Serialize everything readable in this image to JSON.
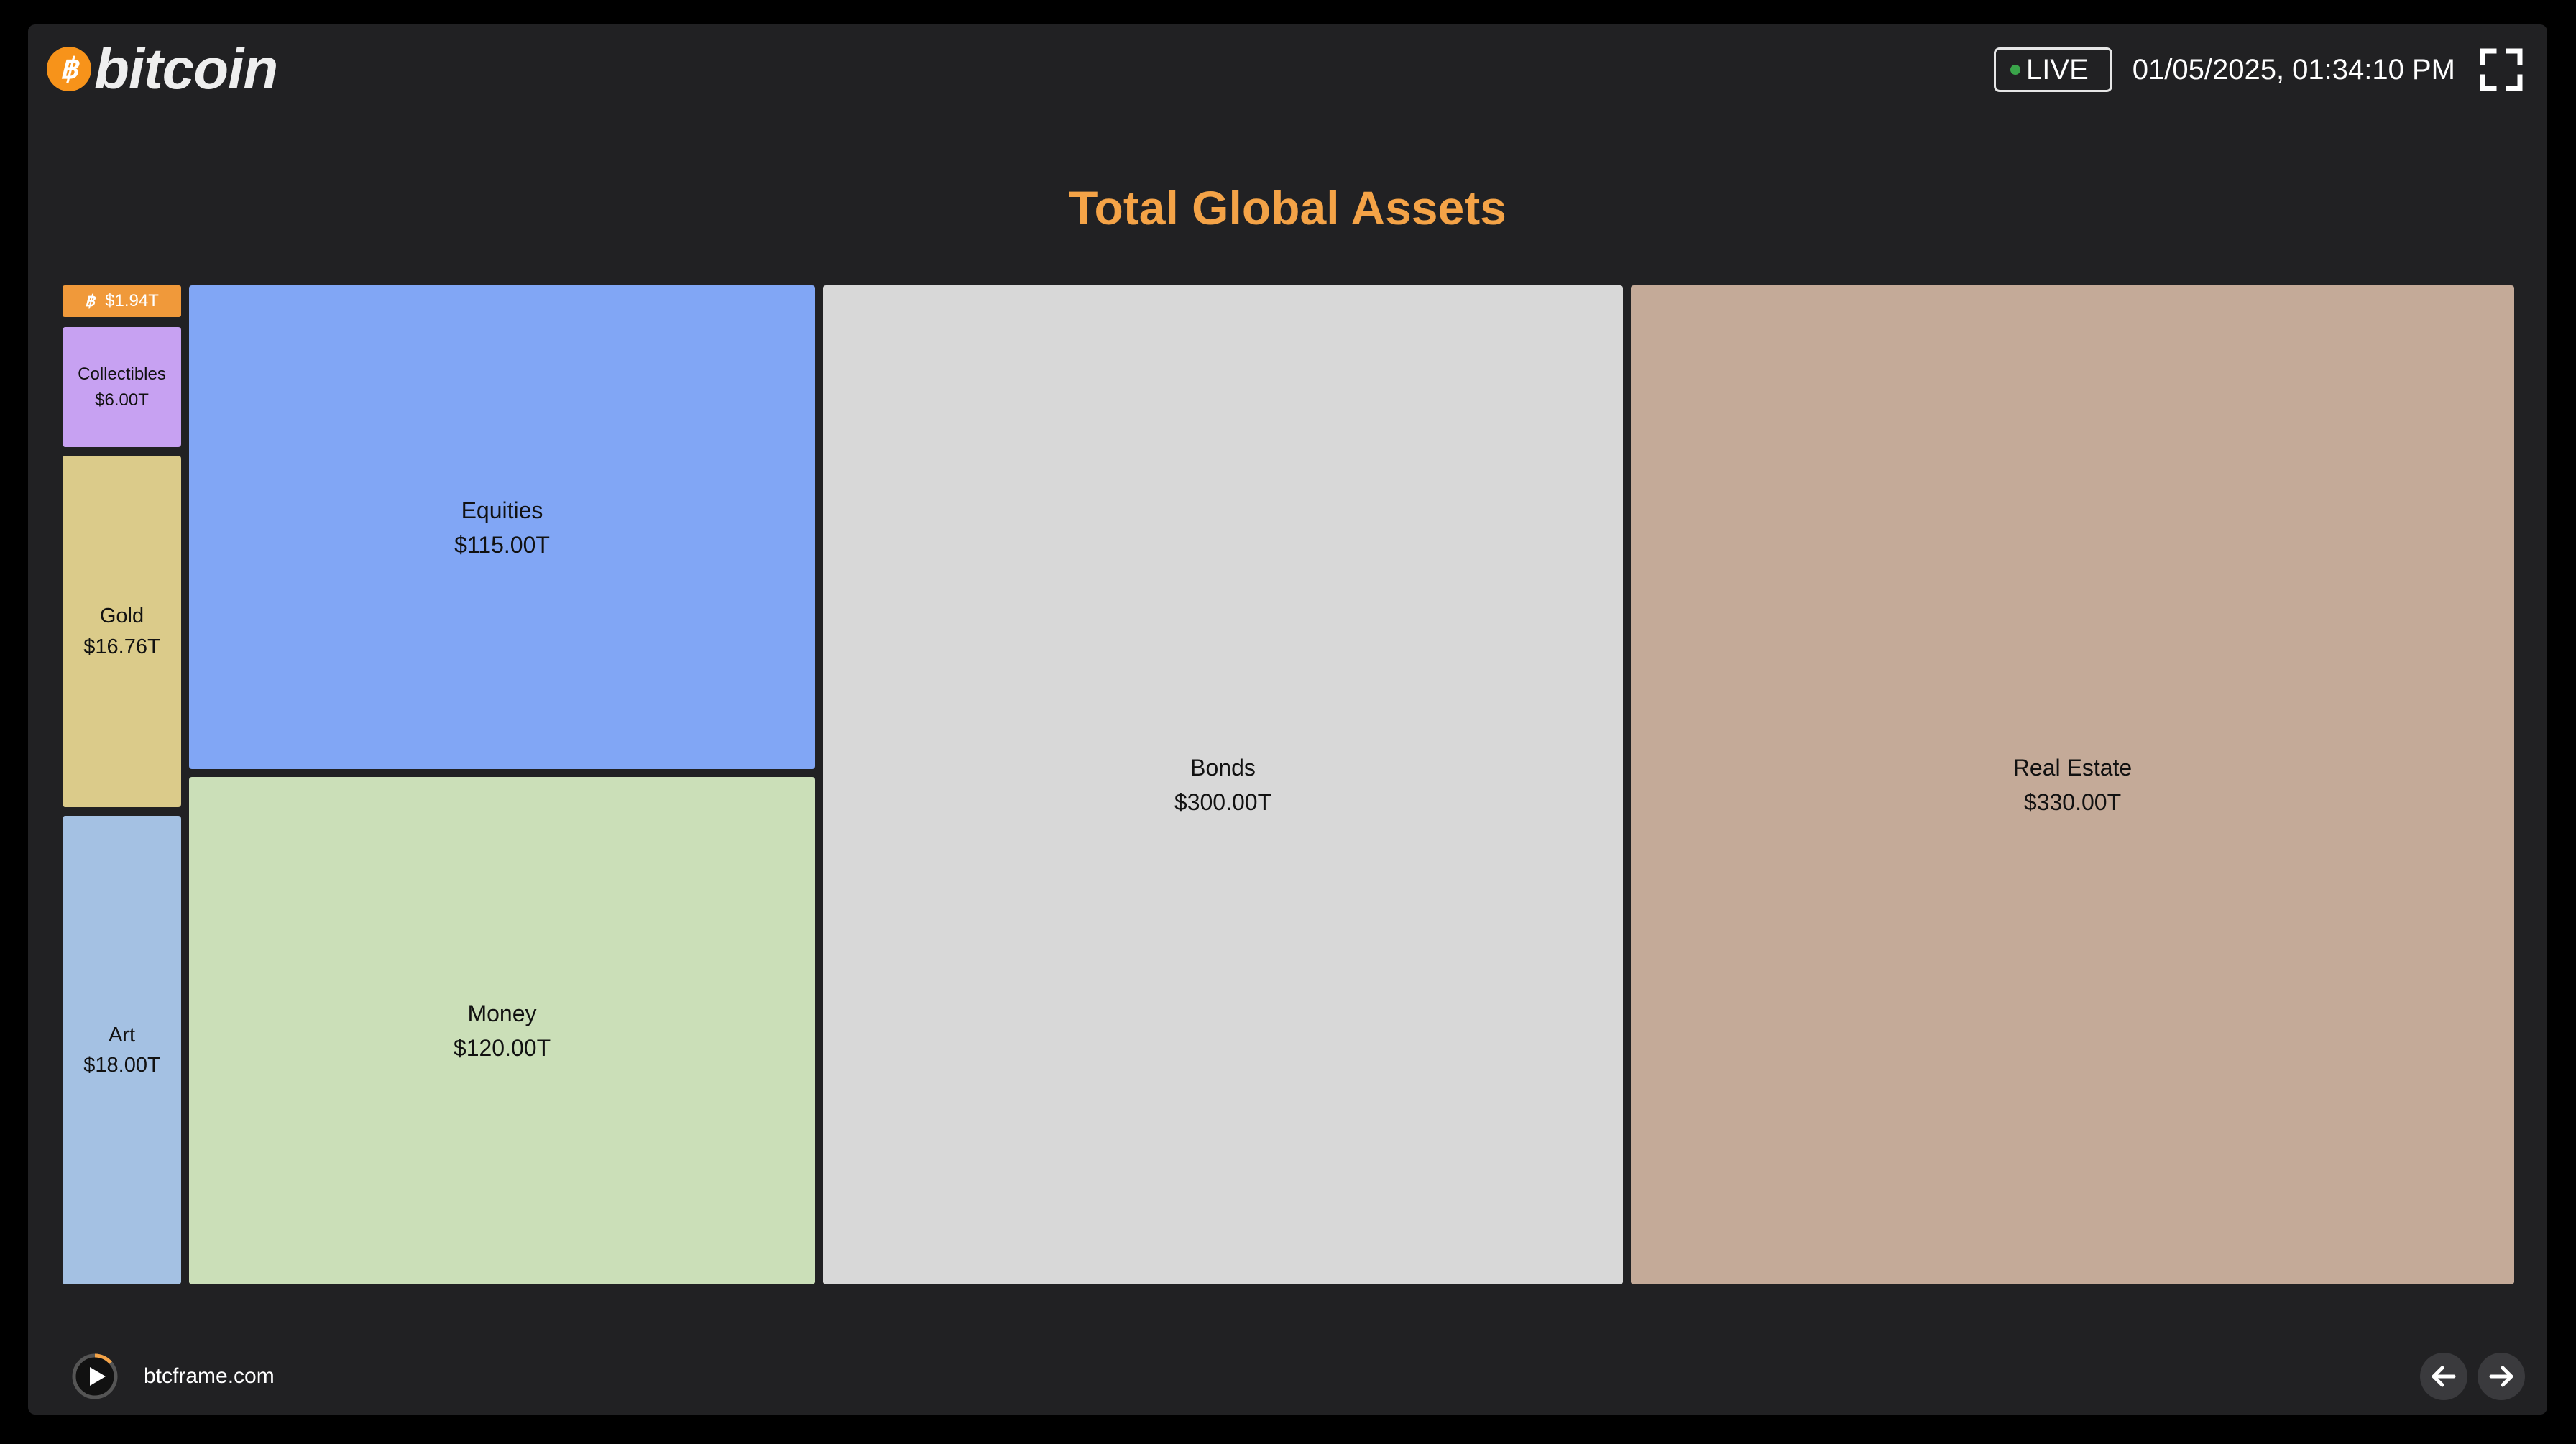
{
  "header": {
    "logo_text": "bitcoin",
    "live_label": "LIVE",
    "timestamp": "01/05/2025, 01:34:10 PM"
  },
  "colors": {
    "background": "#212123",
    "title": "#f4a347",
    "bitcoin": "#f0993a",
    "collectibles": "#c7a1f2",
    "gold": "#dbcb8a",
    "art": "#a4c1e3",
    "equities": "#81a6f5",
    "money": "#cbdfb8",
    "bonds": "#d8d8d8",
    "real_estate": "#c4aa98"
  },
  "chart_data": {
    "type": "treemap",
    "title": "Total Global Assets",
    "unit": "USD trillions",
    "items": [
      {
        "name": "",
        "label": "$1.94T",
        "value": 1.94,
        "icon": "bitcoin-icon"
      },
      {
        "name": "Collectibles",
        "label": "$6.00T",
        "value": 6.0
      },
      {
        "name": "Gold",
        "label": "$16.76T",
        "value": 16.76
      },
      {
        "name": "Art",
        "label": "$18.00T",
        "value": 18.0
      },
      {
        "name": "Equities",
        "label": "$115.00T",
        "value": 115.0
      },
      {
        "name": "Money",
        "label": "$120.00T",
        "value": 120.0
      },
      {
        "name": "Bonds",
        "label": "$300.00T",
        "value": 300.0
      },
      {
        "name": "Real Estate",
        "label": "$330.00T",
        "value": 330.0
      }
    ]
  },
  "footer": {
    "site": "btcframe.com",
    "play_icon": "play-icon",
    "prev_icon": "arrow-left-icon",
    "next_icon": "arrow-right-icon"
  }
}
